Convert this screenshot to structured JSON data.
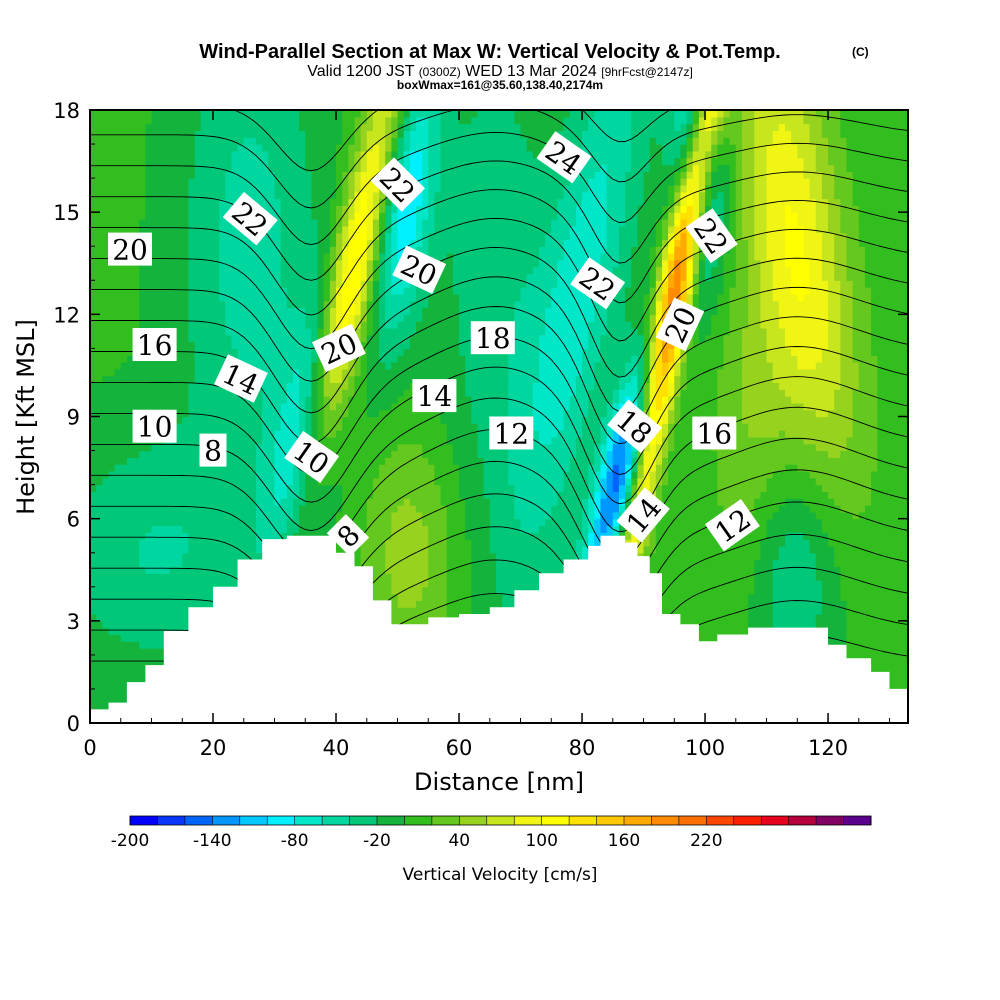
{
  "chart_data": {
    "type": "heatmap",
    "title": "Wind-Parallel Section at Max W: Vertical Velocity & Pot.Temp.",
    "title_mark": "(C)",
    "subtitle": {
      "prefix": "Valid 1200 JST",
      "utc": "(0300Z)",
      "date": "WED 13 Mar 2024",
      "fcst": "[9hrFcst@2147z]"
    },
    "subtitle2": "boxWmax=161@35.60,138.40,2174m",
    "xlabel": "Distance [nm]",
    "ylabel": "Height [Kft MSL]",
    "xlim": [
      0,
      133
    ],
    "ylim": [
      0,
      18
    ],
    "xticks": [
      "0",
      "20",
      "40",
      "60",
      "80",
      "100",
      "120"
    ],
    "xtick_values": [
      0,
      20,
      40,
      60,
      80,
      100,
      120
    ],
    "yticks": [
      "0",
      "3",
      "6",
      "9",
      "12",
      "15",
      "18"
    ],
    "ytick_values": [
      0,
      3,
      6,
      9,
      12,
      15,
      18
    ],
    "colorbar": {
      "title": "Vertical Velocity [cm/s]",
      "min": -200,
      "max": 250,
      "step": 20,
      "tick_labels": [
        "-200",
        "-140",
        "-80",
        "-20",
        "40",
        "100",
        "160",
        "220"
      ],
      "tick_values": [
        -200,
        -140,
        -80,
        -20,
        40,
        100,
        160,
        220
      ],
      "colors": [
        "#0000ff",
        "#0a37ff",
        "#0064ff",
        "#0096ff",
        "#00c8ff",
        "#00f0ff",
        "#00e6c8",
        "#00d7a0",
        "#00c878",
        "#14b43c",
        "#32be1e",
        "#64c81e",
        "#96d21e",
        "#c8e61e",
        "#f0f514",
        "#ffff00",
        "#ffe100",
        "#ffc800",
        "#ffaa00",
        "#ff8c00",
        "#ff6e00",
        "#ff4600",
        "#ff1e00",
        "#e6001e",
        "#b4003c",
        "#820064",
        "#5a008c"
      ]
    },
    "terrain_kft": [
      [
        0,
        0.4
      ],
      [
        3,
        0.6
      ],
      [
        6,
        1.2
      ],
      [
        9,
        1.7
      ],
      [
        12,
        2.7
      ],
      [
        16,
        3.4
      ],
      [
        20,
        4.0
      ],
      [
        24,
        4.8
      ],
      [
        28,
        5.4
      ],
      [
        32,
        5.5
      ],
      [
        38,
        5.5
      ],
      [
        40,
        5.0
      ],
      [
        43,
        4.6
      ],
      [
        46,
        3.6
      ],
      [
        49,
        2.9
      ],
      [
        55,
        3.1
      ],
      [
        60,
        3.2
      ],
      [
        65,
        3.4
      ],
      [
        69,
        3.9
      ],
      [
        73,
        4.4
      ],
      [
        77,
        4.8
      ],
      [
        81,
        5.2
      ],
      [
        83,
        5.5
      ],
      [
        87,
        5.3
      ],
      [
        89,
        4.9
      ],
      [
        91,
        4.4
      ],
      [
        93,
        3.2
      ],
      [
        96,
        2.9
      ],
      [
        99,
        2.4
      ],
      [
        102,
        2.6
      ],
      [
        107,
        2.8
      ],
      [
        112,
        2.8
      ],
      [
        116,
        2.8
      ],
      [
        120,
        2.3
      ],
      [
        123,
        1.9
      ],
      [
        127,
        1.5
      ],
      [
        130,
        1.0
      ],
      [
        133,
        1.0
      ]
    ],
    "w_field": {
      "background_cms": 5,
      "features": [
        {
          "x": 10,
          "y": 5.0,
          "sx": 12,
          "sy": 2.5,
          "amp": -45,
          "tilt": 0
        },
        {
          "x": 26,
          "y": 14.0,
          "sx": 8,
          "sy": 5.0,
          "amp": -55,
          "tilt": 0
        },
        {
          "x": 35,
          "y": 8.0,
          "sx": 3.5,
          "sy": 3.0,
          "amp": -120,
          "tilt": 0.9
        },
        {
          "x": 42,
          "y": 12.5,
          "sx": 2.8,
          "sy": 6.0,
          "amp": 150,
          "tilt": 1.2
        },
        {
          "x": 51,
          "y": 15.5,
          "sx": 3.5,
          "sy": 3.0,
          "amp": -110,
          "tilt": 0.6
        },
        {
          "x": 52,
          "y": 5.0,
          "sx": 5.5,
          "sy": 2.5,
          "amp": 45,
          "tilt": 0
        },
        {
          "x": 66,
          "y": 13.0,
          "sx": 6.5,
          "sy": 5.5,
          "amp": -40,
          "tilt": 0
        },
        {
          "x": 80,
          "y": 13.0,
          "sx": 5.0,
          "sy": 6.0,
          "amp": -75,
          "tilt": 1.0
        },
        {
          "x": 87,
          "y": 7.5,
          "sx": 2.8,
          "sy": 2.6,
          "amp": -180,
          "tilt": 1.3
        },
        {
          "x": 95,
          "y": 12.5,
          "sx": 2.0,
          "sy": 6.5,
          "amp": 230,
          "tilt": 1.0
        },
        {
          "x": 99,
          "y": 16.5,
          "sx": 3.0,
          "sy": 2.5,
          "amp": -120,
          "tilt": 0
        },
        {
          "x": 115,
          "y": 14.0,
          "sx": 5.5,
          "sy": 5.0,
          "amp": 95,
          "tilt": -0.8
        },
        {
          "x": 108,
          "y": 7.0,
          "sx": 5.0,
          "sy": 4.0,
          "amp": 45,
          "tilt": 0
        },
        {
          "x": 113,
          "y": 4.5,
          "sx": 6.0,
          "sy": 2.5,
          "amp": -60,
          "tilt": 0
        }
      ]
    },
    "theta_field": {
      "base_c": 4,
      "gradient_per_kft": 1.1,
      "waves": [
        {
          "x": 36,
          "y": 9,
          "sx": 6,
          "sy": 9,
          "amp": 3.0
        },
        {
          "x": 86,
          "y": 8,
          "sx": 5,
          "sy": 7,
          "amp": 3.2
        },
        {
          "x": 66,
          "y": 10,
          "sx": 10,
          "sy": 9,
          "amp": -1.5
        },
        {
          "x": 115,
          "y": 9,
          "sx": 10,
          "sy": 8,
          "amp": -1.2
        }
      ],
      "levels_c": [
        6,
        7,
        8,
        9,
        10,
        11,
        12,
        13,
        14,
        15,
        16,
        17,
        18,
        19,
        20,
        21,
        22,
        23,
        24
      ]
    },
    "contour_labels": [
      {
        "text": "20",
        "x": 6.5,
        "y": 13.9,
        "angle": 0
      },
      {
        "text": "16",
        "x": 10.5,
        "y": 11.1,
        "angle": 0
      },
      {
        "text": "14",
        "x": 24.5,
        "y": 10.1,
        "angle": 25
      },
      {
        "text": "10",
        "x": 10.5,
        "y": 8.7,
        "angle": 0
      },
      {
        "text": "8",
        "x": 20.0,
        "y": 8.0,
        "angle": 0
      },
      {
        "text": "22",
        "x": 26.0,
        "y": 14.8,
        "angle": 40
      },
      {
        "text": "10",
        "x": 36.0,
        "y": 7.8,
        "angle": 35
      },
      {
        "text": "20",
        "x": 40.5,
        "y": 11.0,
        "angle": -25
      },
      {
        "text": "8",
        "x": 42.0,
        "y": 5.5,
        "angle": -45
      },
      {
        "text": "22",
        "x": 50.0,
        "y": 15.8,
        "angle": 45
      },
      {
        "text": "20",
        "x": 53.5,
        "y": 13.3,
        "angle": 25
      },
      {
        "text": "14",
        "x": 56.0,
        "y": 9.6,
        "angle": 0
      },
      {
        "text": "18",
        "x": 65.5,
        "y": 11.3,
        "angle": 0
      },
      {
        "text": "12",
        "x": 68.5,
        "y": 8.5,
        "angle": 0
      },
      {
        "text": "24",
        "x": 77.0,
        "y": 16.6,
        "angle": 35
      },
      {
        "text": "22",
        "x": 82.5,
        "y": 12.9,
        "angle": 35
      },
      {
        "text": "18",
        "x": 88.5,
        "y": 8.7,
        "angle": 40
      },
      {
        "text": "14",
        "x": 90.0,
        "y": 6.1,
        "angle": -50
      },
      {
        "text": "20",
        "x": 96.0,
        "y": 11.7,
        "angle": -65
      },
      {
        "text": "22",
        "x": 101.0,
        "y": 14.3,
        "angle": 55
      },
      {
        "text": "16",
        "x": 101.5,
        "y": 8.5,
        "angle": 0
      },
      {
        "text": "12",
        "x": 104.5,
        "y": 5.8,
        "angle": -35
      }
    ]
  }
}
